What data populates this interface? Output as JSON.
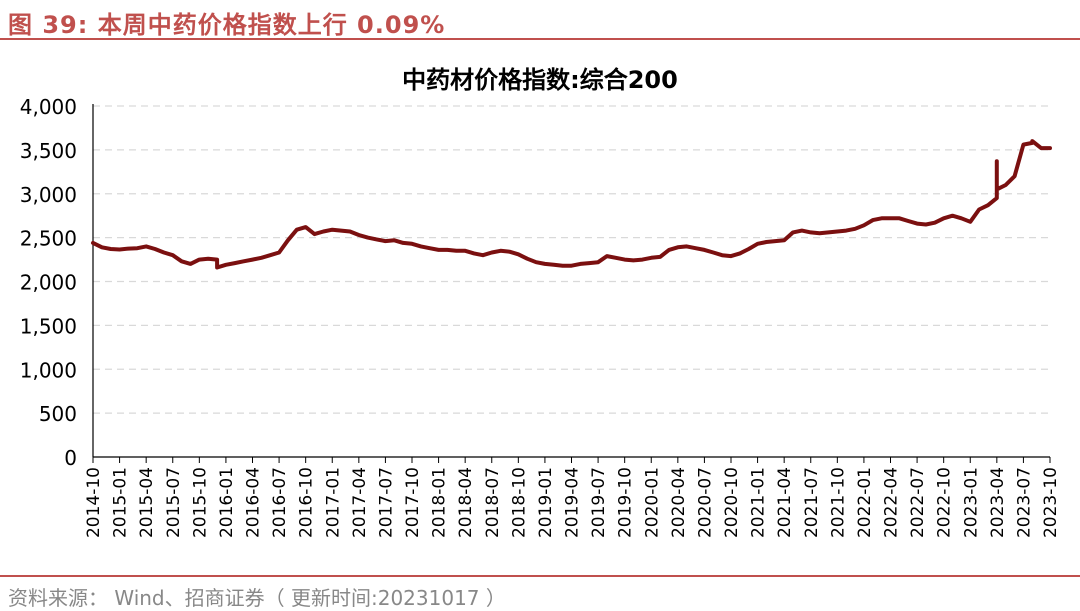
{
  "figure": {
    "title": "图 39:  本周中药价格指数上行 0.09%",
    "source": "资料来源： Wind、招商证券（ 更新时间:20231017 ）"
  },
  "colors": {
    "accent": "#c0504d",
    "series": "#7b1010",
    "grid": "#d9d9d9",
    "source_text": "#888888"
  },
  "chart_data": {
    "type": "line",
    "title": "中药材价格指数:综合200",
    "xlabel": "",
    "ylabel": "",
    "ylim": [
      0,
      4000
    ],
    "yticks": [
      0,
      500,
      1000,
      1500,
      2000,
      2500,
      3000,
      3500,
      4000
    ],
    "ytick_labels": [
      "0",
      "500",
      "1,000",
      "1,500",
      "2,000",
      "2,500",
      "3,000",
      "3,500",
      "4,000"
    ],
    "xlim": [
      "2014-10",
      "2023-10"
    ],
    "xtick_labels": [
      "2014-10",
      "2015-01",
      "2015-04",
      "2015-07",
      "2015-10",
      "2016-01",
      "2016-04",
      "2016-07",
      "2016-10",
      "2017-01",
      "2017-04",
      "2017-07",
      "2017-10",
      "2018-01",
      "2018-04",
      "2018-07",
      "2018-10",
      "2019-01",
      "2019-04",
      "2019-07",
      "2019-10",
      "2020-01",
      "2020-04",
      "2020-07",
      "2020-10",
      "2021-01",
      "2021-04",
      "2021-07",
      "2021-10",
      "2022-01",
      "2022-04",
      "2022-07",
      "2022-10",
      "2023-01",
      "2023-04",
      "2023-07",
      "2023-10"
    ],
    "grid": "horizontal dashed",
    "legend": "none",
    "series": [
      {
        "name": "",
        "x": [
          "2014-10",
          "2014-11",
          "2014-12",
          "2015-01",
          "2015-02",
          "2015-03",
          "2015-04",
          "2015-05",
          "2015-06",
          "2015-07",
          "2015-08",
          "2015-09",
          "2015-10",
          "2015-11",
          "2015-12",
          "2015-12",
          "2016-01",
          "2016-02",
          "2016-03",
          "2016-04",
          "2016-05",
          "2016-06",
          "2016-07",
          "2016-08",
          "2016-09",
          "2016-10",
          "2016-11",
          "2016-12",
          "2017-01",
          "2017-02",
          "2017-03",
          "2017-04",
          "2017-05",
          "2017-06",
          "2017-07",
          "2017-08",
          "2017-09",
          "2017-10",
          "2017-11",
          "2017-12",
          "2018-01",
          "2018-02",
          "2018-03",
          "2018-04",
          "2018-05",
          "2018-06",
          "2018-07",
          "2018-08",
          "2018-09",
          "2018-10",
          "2018-11",
          "2018-12",
          "2019-01",
          "2019-02",
          "2019-03",
          "2019-04",
          "2019-05",
          "2019-06",
          "2019-07",
          "2019-08",
          "2019-09",
          "2019-10",
          "2019-11",
          "2019-12",
          "2020-01",
          "2020-02",
          "2020-03",
          "2020-04",
          "2020-05",
          "2020-06",
          "2020-07",
          "2020-08",
          "2020-09",
          "2020-10",
          "2020-11",
          "2020-12",
          "2021-01",
          "2021-02",
          "2021-03",
          "2021-04",
          "2021-05",
          "2021-06",
          "2021-07",
          "2021-08",
          "2021-09",
          "2021-10",
          "2021-11",
          "2021-12",
          "2022-01",
          "2022-02",
          "2022-03",
          "2022-04",
          "2022-05",
          "2022-06",
          "2022-07",
          "2022-08",
          "2022-09",
          "2022-10",
          "2022-11",
          "2022-12",
          "2023-01",
          "2023-02",
          "2023-03",
          "2023-04",
          "2023-04",
          "2023-04",
          "2023-05",
          "2023-06",
          "2023-07",
          "2023-08",
          "2023-08",
          "2023-09",
          "2023-10"
        ],
        "values": [
          2440,
          2390,
          2370,
          2365,
          2375,
          2380,
          2400,
          2370,
          2330,
          2300,
          2230,
          2200,
          2250,
          2260,
          2250,
          2160,
          2190,
          2210,
          2230,
          2250,
          2270,
          2300,
          2330,
          2470,
          2590,
          2620,
          2540,
          2570,
          2590,
          2580,
          2570,
          2530,
          2500,
          2480,
          2460,
          2470,
          2440,
          2430,
          2400,
          2380,
          2360,
          2360,
          2350,
          2350,
          2320,
          2300,
          2330,
          2350,
          2340,
          2310,
          2260,
          2220,
          2200,
          2190,
          2180,
          2180,
          2200,
          2210,
          2220,
          2290,
          2270,
          2250,
          2240,
          2250,
          2270,
          2280,
          2360,
          2390,
          2400,
          2380,
          2360,
          2330,
          2300,
          2290,
          2320,
          2370,
          2430,
          2450,
          2460,
          2470,
          2560,
          2580,
          2560,
          2550,
          2560,
          2570,
          2580,
          2600,
          2640,
          2700,
          2720,
          2720,
          2720,
          2690,
          2660,
          2650,
          2670,
          2720,
          2750,
          2720,
          2680,
          2820,
          2870,
          2950,
          3370,
          3050,
          3100,
          3200,
          3560,
          3580,
          3600,
          3520,
          3520
        ]
      }
    ]
  }
}
